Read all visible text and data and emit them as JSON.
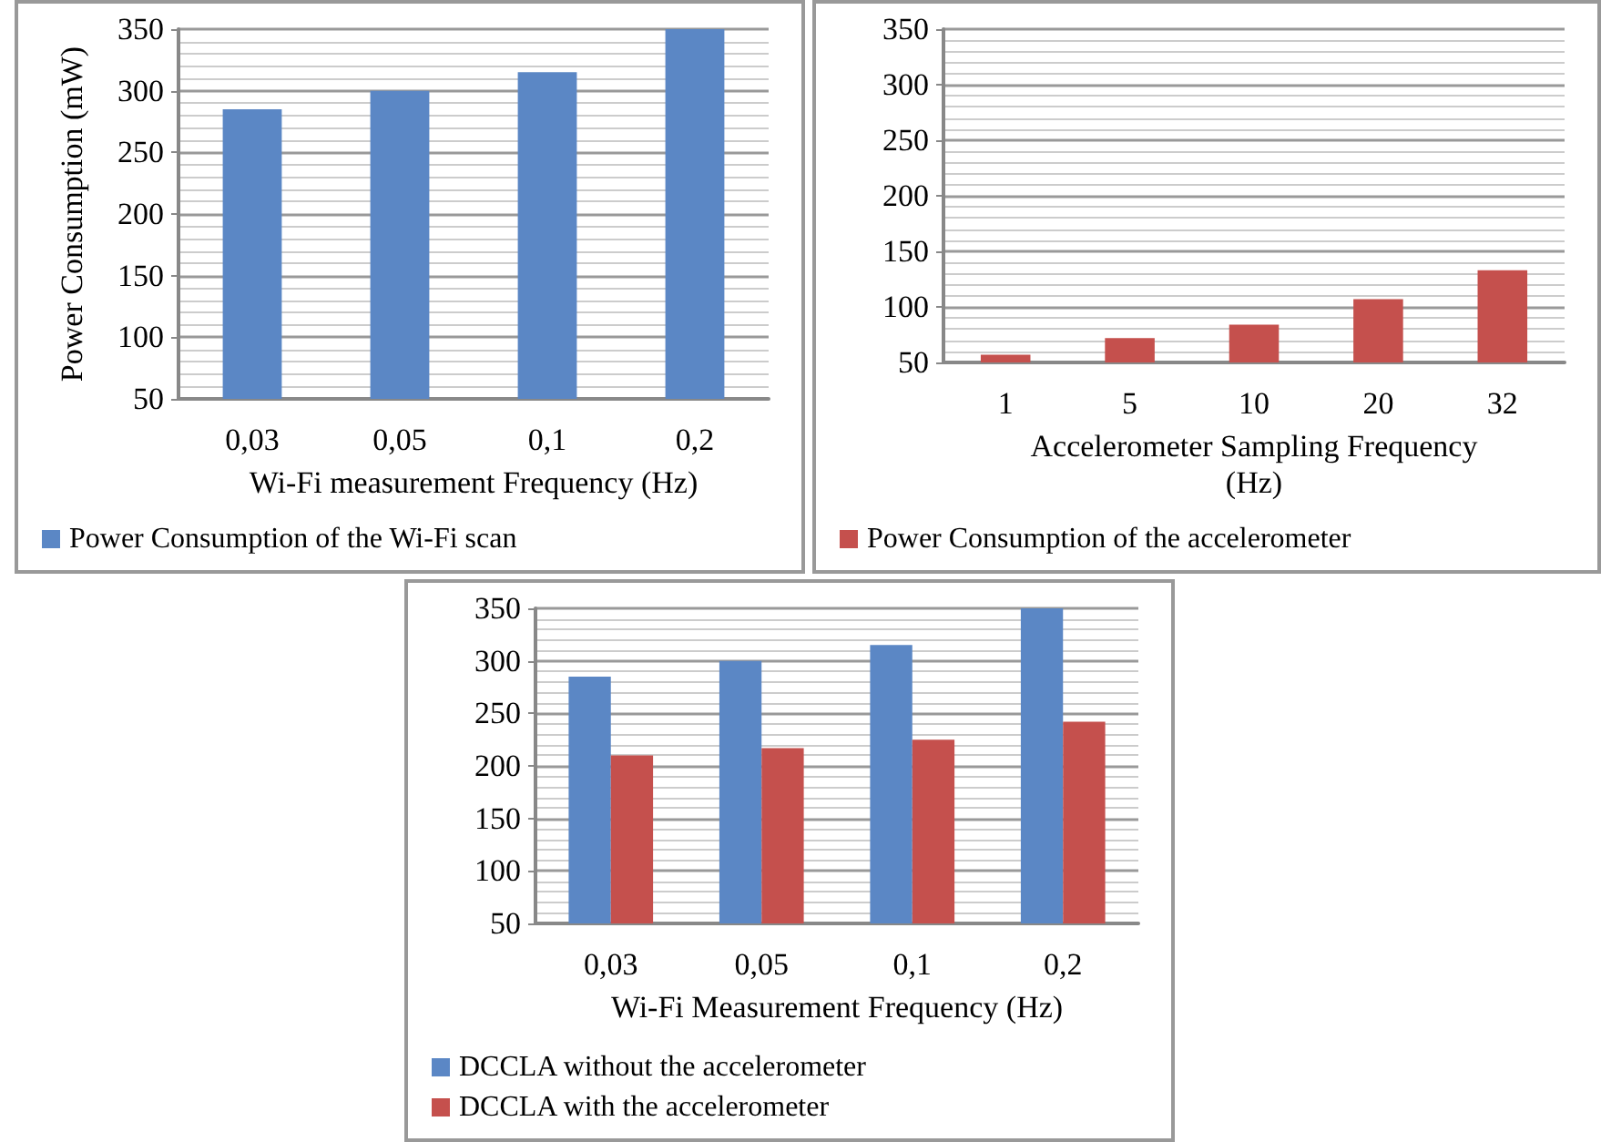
{
  "chart_data": [
    {
      "type": "bar",
      "categories": [
        "0,03",
        "0,05",
        "0,1",
        "0,2"
      ],
      "xlabel": "Wi-Fi measurement Frequency (Hz)",
      "ylabel": "Power Consumption (mW)",
      "ylim": [
        50,
        350
      ],
      "yticks": [
        50,
        100,
        150,
        200,
        250,
        300,
        350
      ],
      "grid": "y",
      "legend": "bottom",
      "series": [
        {
          "name": "Power Consumption of the Wi-Fi scan",
          "color": "#5b87c5",
          "values": [
            285,
            300,
            315,
            350
          ]
        }
      ]
    },
    {
      "type": "bar",
      "categories": [
        "1",
        "5",
        "10",
        "20",
        "32"
      ],
      "xlabel": "Accelerometer Sampling Frequency\n(Hz)",
      "ylim": [
        50,
        350
      ],
      "yticks": [
        50,
        100,
        150,
        200,
        250,
        300,
        350
      ],
      "grid": "y",
      "legend": "bottom",
      "series": [
        {
          "name": "Power Consumption of the accelerometer",
          "color": "#c5504d",
          "values": [
            57,
            72,
            84,
            107,
            133
          ]
        }
      ]
    },
    {
      "type": "bar",
      "categories": [
        "0,03",
        "0,05",
        "0,1",
        "0,2"
      ],
      "xlabel": "Wi-Fi Measurement Frequency (Hz)",
      "ylim": [
        50,
        350
      ],
      "yticks": [
        50,
        100,
        150,
        200,
        250,
        300,
        350
      ],
      "grid": "y",
      "legend": "bottom",
      "series": [
        {
          "name": "DCCLA without the accelerometer",
          "color": "#5b87c5",
          "values": [
            285,
            300,
            315,
            350
          ]
        },
        {
          "name": "DCCLA with the accelerometer",
          "color": "#c5504d",
          "values": [
            210,
            217,
            225,
            242
          ]
        }
      ]
    }
  ]
}
